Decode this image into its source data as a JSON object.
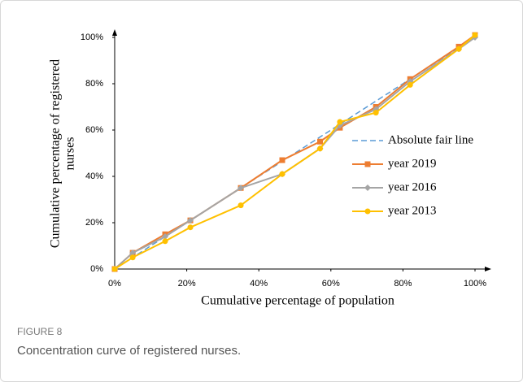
{
  "figure": {
    "label": "FIGURE 8",
    "caption": "Concentration curve of registered nurses."
  },
  "chart_data": {
    "type": "line",
    "xlabel": "Cumulative percentage of population",
    "ylabel": [
      "Cumulative percentage of registered",
      "nurses"
    ],
    "xlim": [
      0,
      100
    ],
    "ylim": [
      0,
      100
    ],
    "xticks": [
      {
        "value": 0,
        "label": "0%"
      },
      {
        "value": 20,
        "label": "20%"
      },
      {
        "value": 40,
        "label": "40%"
      },
      {
        "value": 60,
        "label": "60%"
      },
      {
        "value": 80,
        "label": "80%"
      },
      {
        "value": 100,
        "label": "100%"
      }
    ],
    "yticks": [
      {
        "value": 0,
        "label": "0%"
      },
      {
        "value": 20,
        "label": "20%"
      },
      {
        "value": 40,
        "label": "40%"
      },
      {
        "value": 60,
        "label": "60%"
      },
      {
        "value": 80,
        "label": "80%"
      },
      {
        "value": 100,
        "label": "100%"
      }
    ],
    "grid": false,
    "x": [
      0,
      5,
      14,
      21,
      35,
      46.5,
      57,
      62.5,
      72.5,
      82,
      95.5,
      100
    ],
    "series": [
      {
        "name": "Absolute fair line",
        "color": "#5b9bd5",
        "dashed": true,
        "x": [
          0,
          100
        ],
        "values": [
          0,
          100
        ]
      },
      {
        "name": "year 2019",
        "color": "#ed7d31",
        "marker": "square",
        "values": [
          0,
          7,
          15,
          21,
          35,
          47,
          55,
          61,
          70,
          82,
          96,
          101
        ]
      },
      {
        "name": "year 2016",
        "color": "#a5a5a5",
        "marker": "diamond",
        "values": [
          0,
          7,
          14,
          21,
          35,
          41,
          52,
          62,
          69,
          81,
          95,
          100
        ]
      },
      {
        "name": "year 2013",
        "color": "#ffc000",
        "marker": "circle",
        "values": [
          0,
          5,
          12,
          18,
          27.5,
          41,
          52,
          63.5,
          67.5,
          79.5,
          95,
          101
        ]
      }
    ]
  }
}
